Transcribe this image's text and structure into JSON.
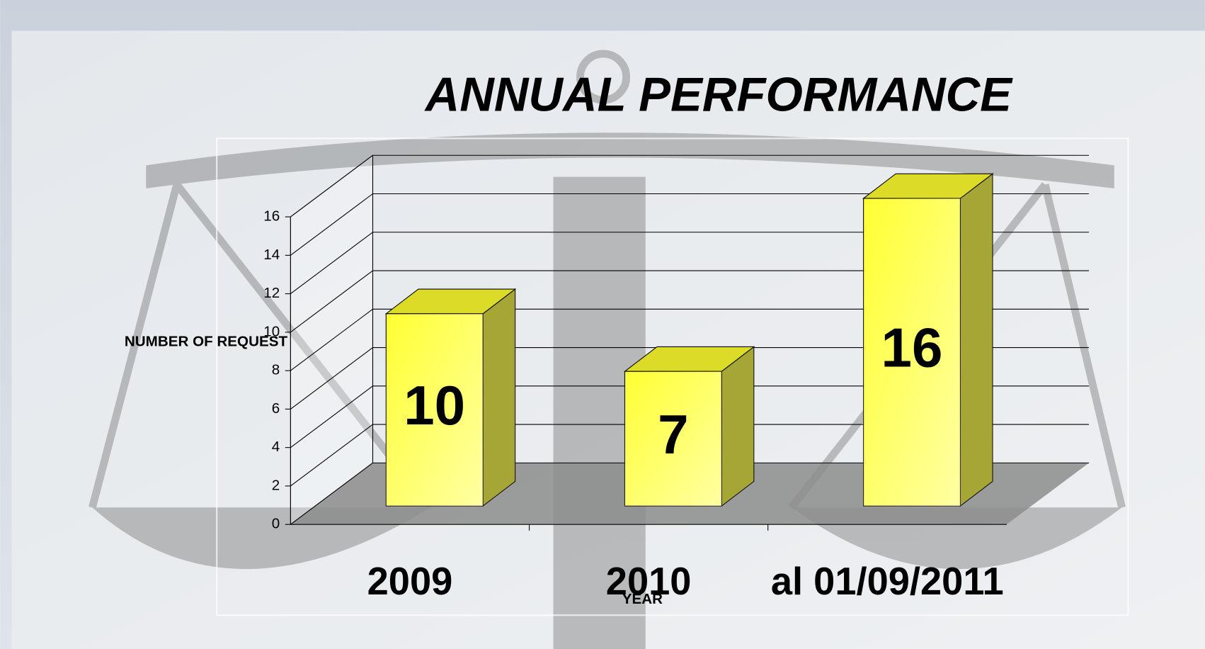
{
  "chart_data": {
    "type": "bar3d",
    "title": "ANNUAL PERFORMANCE",
    "categories": [
      "2009",
      "2010",
      "al 01/09/2011"
    ],
    "values": [
      10,
      7,
      16
    ],
    "color": "#ffff33",
    "y_label": "NUMBER OF REQUEST",
    "x_label": "YEAR",
    "ylim": [
      0,
      16
    ],
    "yticks": [
      0,
      2,
      4,
      6,
      8,
      10,
      12,
      14,
      16
    ],
    "grid": true
  }
}
